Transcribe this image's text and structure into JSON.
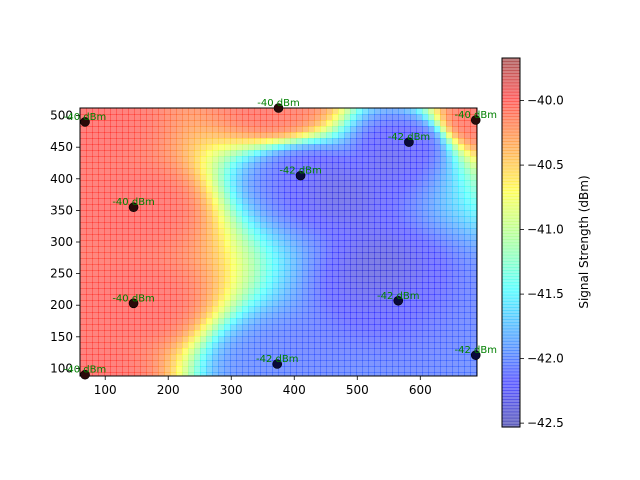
{
  "chart_data": {
    "type": "heatmap",
    "title": "",
    "xlabel": "",
    "ylabel": "",
    "xlim": [
      60,
      690
    ],
    "ylim": [
      88,
      512
    ],
    "xticks": [
      100,
      200,
      300,
      400,
      500,
      600
    ],
    "yticks": [
      100,
      150,
      200,
      250,
      300,
      350,
      400,
      450,
      500
    ],
    "grid": false,
    "colormap": "jet",
    "alpha": 0.5,
    "colorbar": {
      "label": "Signal Strength (dBm)",
      "min": -42.53,
      "max": -39.67,
      "ticks": [
        -42.5,
        -42.0,
        -41.5,
        -41.0,
        -40.5,
        -40.0
      ],
      "tick_labels": [
        "−42.5",
        "−42.0",
        "−41.5",
        "−41.0",
        "−40.5",
        "−40.0"
      ]
    },
    "points": [
      {
        "x": 68,
        "y": 90,
        "value": -40,
        "label": "-40 dBm"
      },
      {
        "x": 68,
        "y": 490,
        "value": -40,
        "label": "-40 dBm"
      },
      {
        "x": 145,
        "y": 203,
        "value": -40,
        "label": "-40 dBm"
      },
      {
        "x": 145,
        "y": 355,
        "value": -40,
        "label": "-40 dBm"
      },
      {
        "x": 375,
        "y": 512,
        "value": -40,
        "label": "-40 dBm"
      },
      {
        "x": 688,
        "y": 493,
        "value": -40,
        "label": "-40 dBm"
      },
      {
        "x": 373,
        "y": 107,
        "value": -42,
        "label": "-42 dBm"
      },
      {
        "x": 410,
        "y": 405,
        "value": -42,
        "label": "-42 dBm"
      },
      {
        "x": 565,
        "y": 207,
        "value": -42,
        "label": "-42 dBm"
      },
      {
        "x": 582,
        "y": 458,
        "value": -42,
        "label": "-42 dBm"
      },
      {
        "x": 688,
        "y": 121,
        "value": -42,
        "label": "-42 dBm"
      }
    ]
  }
}
